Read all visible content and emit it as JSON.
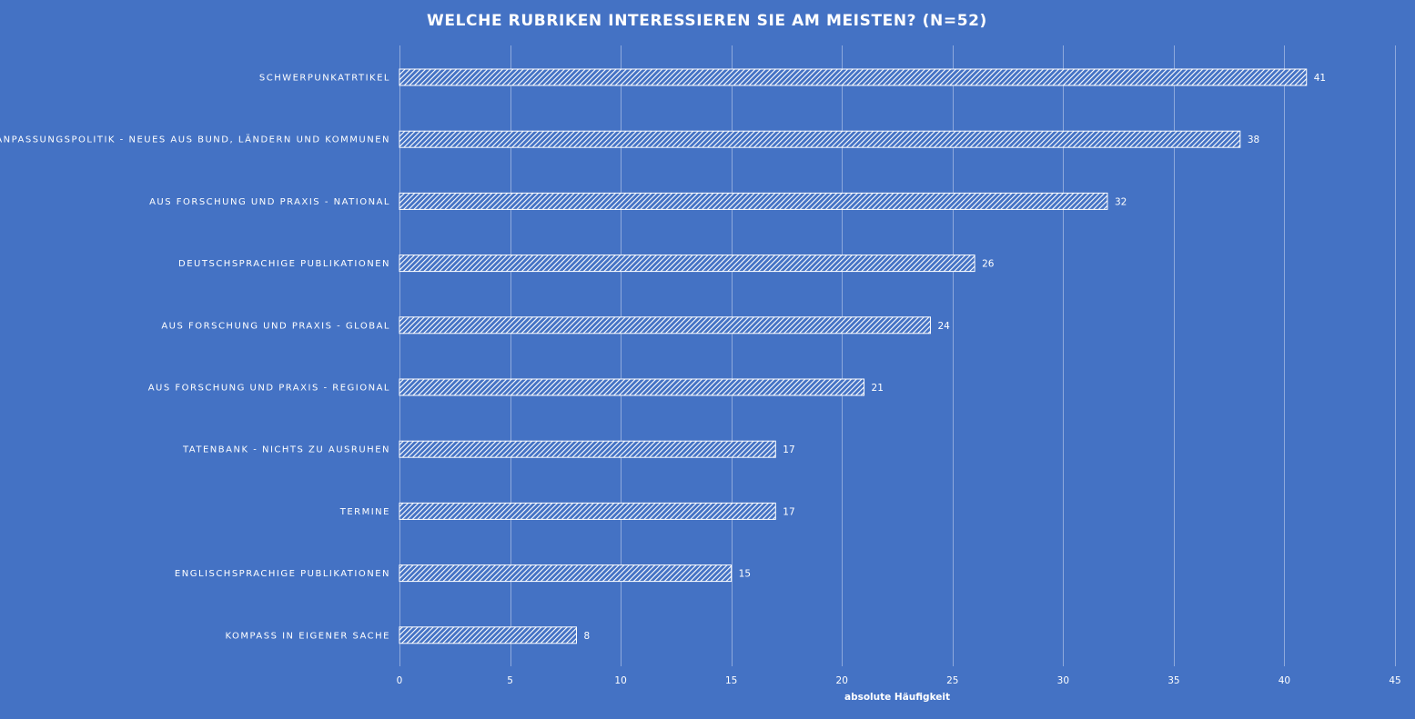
{
  "chart_data": {
    "type": "bar",
    "orientation": "horizontal",
    "title": "WELCHE RUBRIKEN INTERESSIEREN  SIE AM MEISTEN? (N=52)",
    "xlabel": "absolute Häufigkeit",
    "ylabel": "",
    "xlim": [
      0,
      45
    ],
    "xticks": [
      0,
      5,
      10,
      15,
      20,
      25,
      30,
      35,
      40,
      45
    ],
    "grid": true,
    "legend": "none",
    "bar_fill": "diagonal-hatch",
    "colors": {
      "background": "#4472c4",
      "bar_pattern": "#ffffff",
      "gridline": "#8ea9dc",
      "text": "#ffffff"
    },
    "categories": [
      "SCHWERPUNKATRTIKEL",
      "ANPASSUNGSPOLITIK - NEUES AUS BUND, LÄNDERN UND KOMMUNEN",
      "AUS FORSCHUNG UND PRAXIS - NATIONAL",
      "DEUTSCHSPRACHIGE PUBLIKATIONEN",
      "AUS FORSCHUNG UND PRAXIS - GLOBAL",
      "AUS FORSCHUNG UND PRAXIS - REGIONAL",
      "TATENBANK - NICHTS ZU AUSRUHEN",
      "TERMINE",
      "ENGLISCHSPRACHIGE PUBLIKATIONEN",
      "KOMPASS IN EIGENER SACHE"
    ],
    "values": [
      41,
      38,
      32,
      26,
      24,
      21,
      17,
      17,
      15,
      8
    ]
  }
}
